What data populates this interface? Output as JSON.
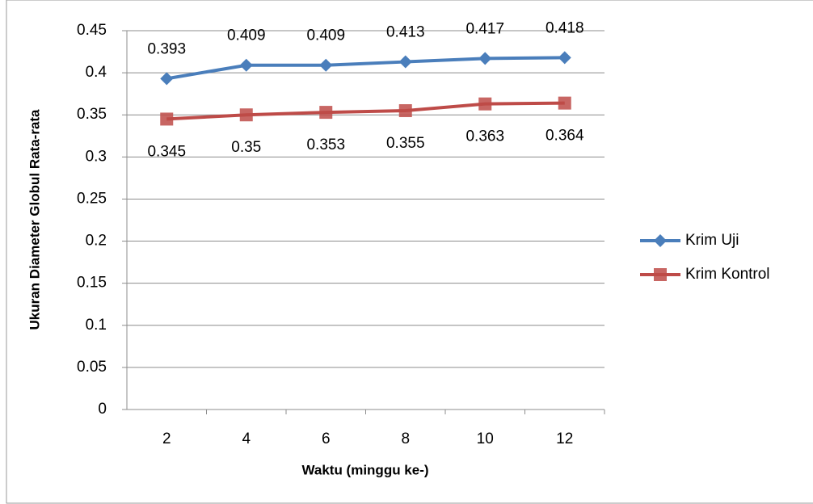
{
  "chart_data": {
    "type": "line",
    "y_label": "Ukuran Diameter  Globul Rata-rata",
    "x_label": "Waktu (minggu ke-)",
    "categories": [
      2,
      4,
      6,
      8,
      10,
      12
    ],
    "series": [
      {
        "name": "Krim Uji",
        "color": "#4a7ebb",
        "marker": "diamond",
        "values": [
          0.393,
          0.409,
          0.409,
          0.413,
          0.417,
          0.418
        ]
      },
      {
        "name": "Krim Kontrol",
        "color": "#be4b48",
        "marker": "square",
        "values": [
          0.345,
          0.35,
          0.353,
          0.355,
          0.363,
          0.364
        ]
      }
    ],
    "ylim": [
      0,
      0.45
    ],
    "yticks": [
      0,
      0.05,
      0.1,
      0.15,
      0.2,
      0.25,
      0.3,
      0.35,
      0.4,
      0.45
    ],
    "grid": true,
    "legend": "right"
  }
}
